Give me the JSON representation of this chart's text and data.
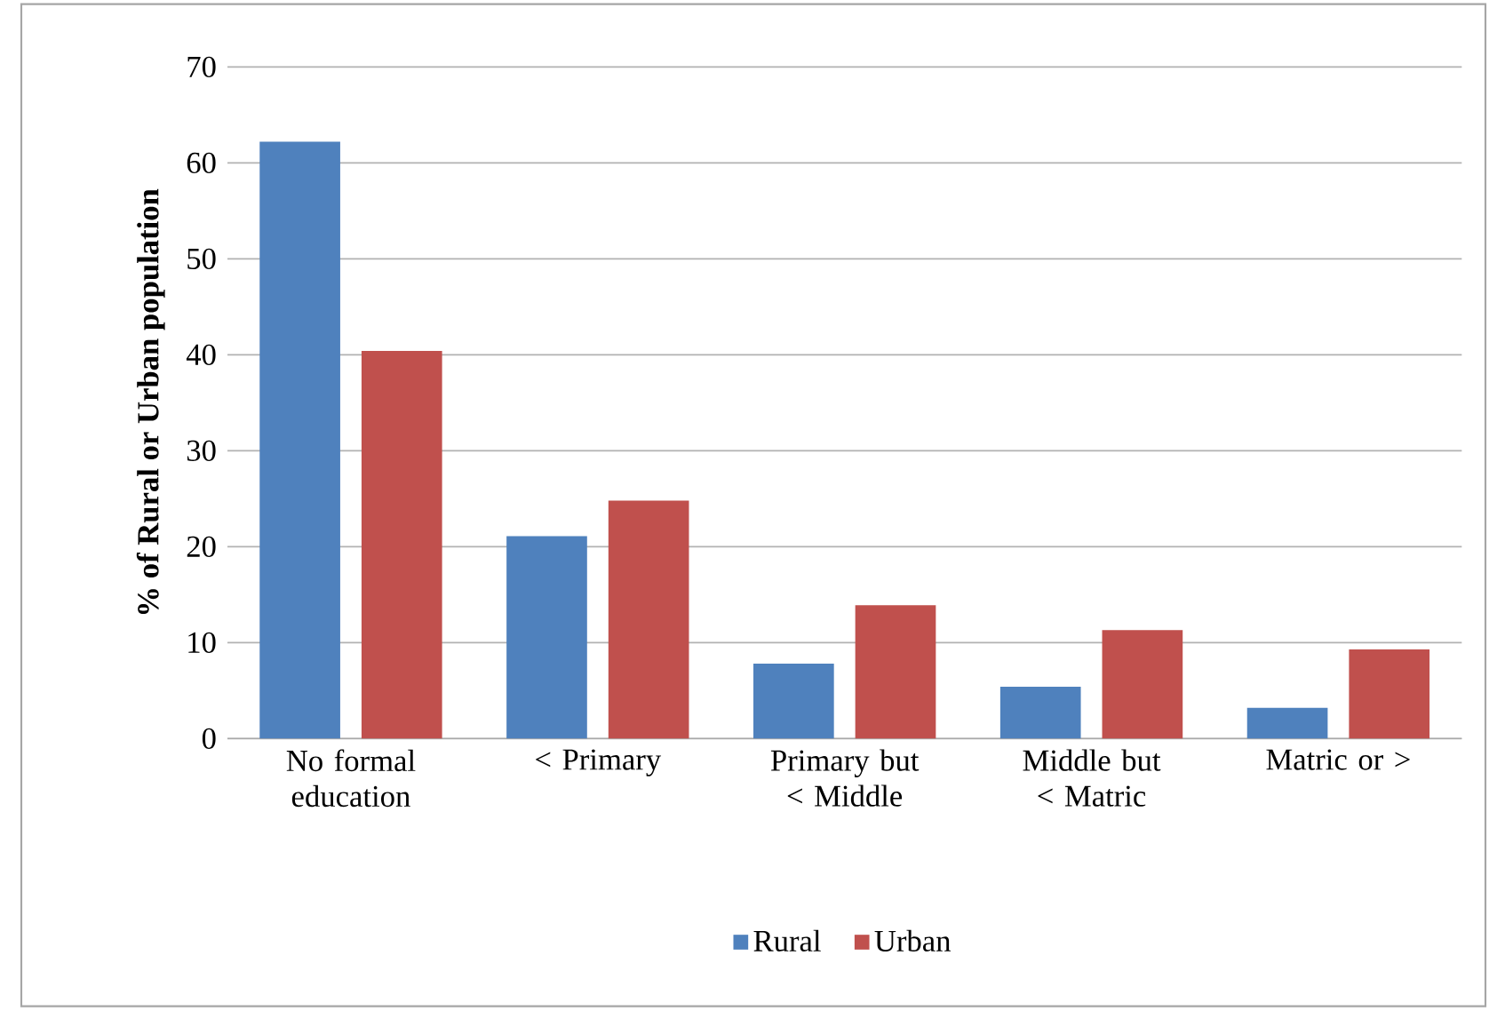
{
  "chart_data": {
    "type": "bar",
    "ylabel": "% of Rural or Urban population",
    "categories": [
      "No formal education",
      "< Primary",
      "Primary but < Middle",
      "Middle but < Matric",
      "Matric or >"
    ],
    "series": [
      {
        "name": "Rural",
        "color": "#4f81bd",
        "values": [
          62.2,
          21.1,
          7.8,
          5.4,
          3.2
        ]
      },
      {
        "name": "Urban",
        "color": "#c0504d",
        "values": [
          40.4,
          24.8,
          13.9,
          11.3,
          9.3
        ]
      }
    ],
    "ylim": [
      0,
      70
    ],
    "yticks": [
      0,
      10,
      20,
      30,
      40,
      50,
      60,
      70
    ],
    "grid": "y",
    "legend": "bottom"
  }
}
